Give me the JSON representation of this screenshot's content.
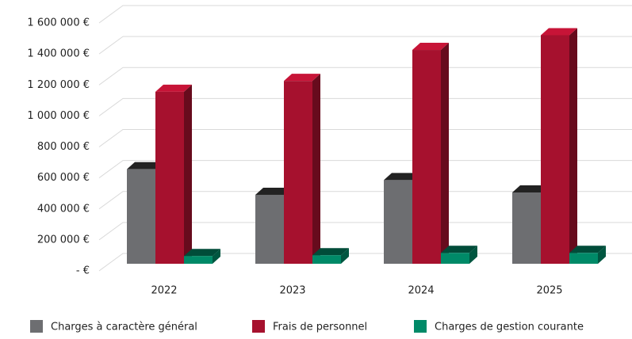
{
  "chart_data": {
    "type": "bar3d",
    "categories": [
      "2022",
      "2023",
      "2024",
      "2025"
    ],
    "series": [
      {
        "name": "Charges à caractère général",
        "color": "#6d6e71",
        "values": [
          610000,
          445000,
          540000,
          460000
        ]
      },
      {
        "name": "Frais de personnel",
        "color": "#a6112e",
        "values": [
          1110000,
          1180000,
          1380000,
          1475000
        ]
      },
      {
        "name": "Charges de gestion courante",
        "color": "#008a68",
        "values": [
          50000,
          55000,
          70000,
          70000
        ]
      }
    ],
    "ylim": [
      0,
      1600000
    ],
    "yticks": [
      {
        "value": 0,
        "label": "- €"
      },
      {
        "value": 200000,
        "label": "200 000 €"
      },
      {
        "value": 400000,
        "label": "400 000 €"
      },
      {
        "value": 600000,
        "label": "600 000 €"
      },
      {
        "value": 800000,
        "label": "800 000 €"
      },
      {
        "value": 1000000,
        "label": "1 000 000 €"
      },
      {
        "value": 1200000,
        "label": "1 200 000 €"
      },
      {
        "value": 1400000,
        "label": "1 400 000 €"
      },
      {
        "value": 1600000,
        "label": "1 600 000 €"
      }
    ],
    "grid": true,
    "legend": "bottom"
  }
}
